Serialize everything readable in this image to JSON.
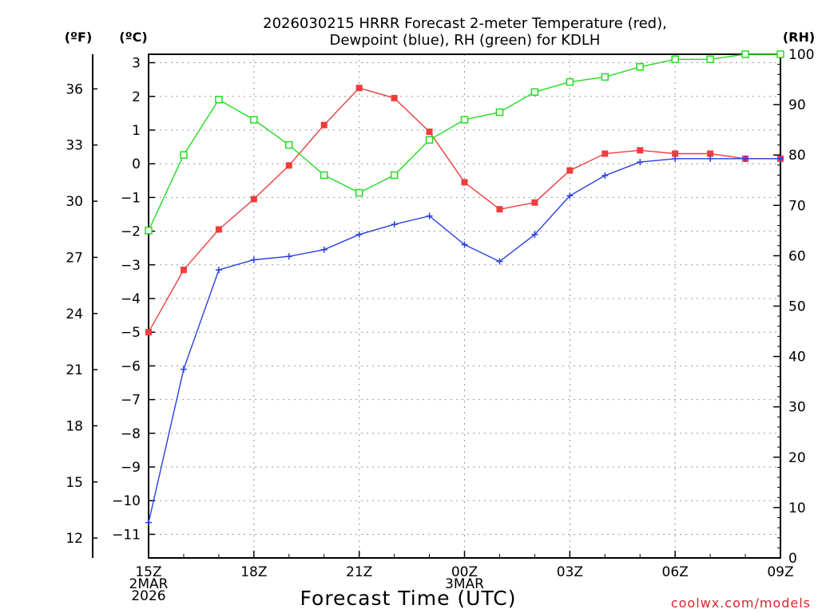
{
  "title_line1": "2026030215 HRRR Forecast 2-meter Temperature (red),",
  "title_line2": "Dewpoint (blue), RH (green) for KDLH",
  "credit": "coolwx.com/models",
  "chart_data": {
    "type": "line",
    "xlabel": "Forecast Time (UTC)",
    "x": [
      0,
      1,
      2,
      3,
      4,
      5,
      6,
      7,
      8,
      9,
      10,
      11,
      12,
      13,
      14,
      15,
      16,
      17,
      18
    ],
    "x_tick_positions": [
      0,
      3,
      6,
      9,
      12,
      15,
      18
    ],
    "x_tick_labels": [
      {
        "lines": [
          "15Z",
          "2MAR",
          "2026"
        ]
      },
      {
        "lines": [
          "18Z"
        ]
      },
      {
        "lines": [
          "21Z"
        ]
      },
      {
        "lines": [
          "00Z",
          "3MAR"
        ]
      },
      {
        "lines": [
          "03Z"
        ]
      },
      {
        "lines": [
          "06Z"
        ]
      },
      {
        "lines": [
          "09Z"
        ]
      }
    ],
    "left_axis_c": {
      "unit_label": "(ºC)",
      "range": [
        -11.7,
        3.25
      ],
      "ticks": [
        3,
        2,
        1,
        0,
        -1,
        -2,
        -3,
        -4,
        -5,
        -6,
        -7,
        -8,
        -9,
        -10,
        -11
      ],
      "tick_labels": [
        "3",
        "2",
        "1",
        "0",
        "−1",
        "−2",
        "−3",
        "−4",
        "−5",
        "−6",
        "−7",
        "−8",
        "−9",
        "−10",
        "−11"
      ]
    },
    "left_axis_f": {
      "unit_label": "(ºF)",
      "ticks": [
        36,
        33,
        30,
        27,
        24,
        21,
        18,
        15,
        12
      ],
      "tick_labels": [
        "36",
        "33",
        "30",
        "27",
        "24",
        "21",
        "18",
        "15",
        "12"
      ]
    },
    "right_axis_rh": {
      "unit_label": "(RH)",
      "range": [
        0,
        100
      ],
      "ticks": [
        100,
        90,
        80,
        70,
        60,
        50,
        40,
        30,
        20,
        10,
        0
      ],
      "tick_labels": [
        "100",
        "90",
        "80",
        "70",
        "60",
        "50",
        "40",
        "30",
        "20",
        "10",
        "0"
      ]
    },
    "grid": true,
    "series": [
      {
        "name": "Temperature",
        "axis": "left_c",
        "color": "#f03c3c",
        "marker": "filled-square",
        "values": [
          -5.0,
          -3.15,
          -1.95,
          -1.05,
          -0.05,
          1.15,
          2.25,
          1.95,
          0.95,
          -0.55,
          -1.35,
          -1.15,
          -0.2,
          0.3,
          0.4,
          0.3,
          0.3,
          0.15,
          0.15
        ]
      },
      {
        "name": "Dewpoint",
        "axis": "left_c",
        "color": "#2a3fe0",
        "marker": "plus",
        "values": [
          -10.65,
          -6.1,
          -3.15,
          -2.85,
          -2.75,
          -2.55,
          -2.1,
          -1.8,
          -1.55,
          -2.4,
          -2.9,
          -2.1,
          -0.95,
          -0.35,
          0.05,
          0.15,
          0.15,
          0.15,
          0.15
        ]
      },
      {
        "name": "RH",
        "axis": "right_rh",
        "color": "#22dd22",
        "marker": "open-square",
        "values": [
          65,
          80,
          91,
          87,
          82,
          76,
          72.5,
          76,
          83,
          87,
          88.5,
          92.5,
          94.5,
          95.5,
          97.5,
          99,
          99,
          100,
          100
        ]
      }
    ]
  }
}
